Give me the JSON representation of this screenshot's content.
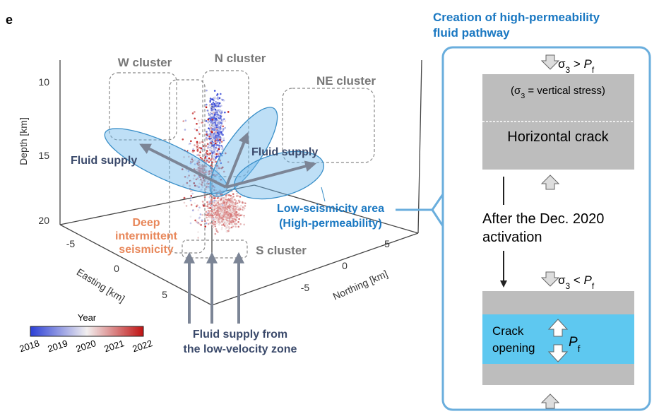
{
  "panel_label": "e",
  "plot": {
    "clusters": {
      "w": "W cluster",
      "n": "N cluster",
      "ne": "NE cluster",
      "s": "S cluster"
    },
    "depth_axis": {
      "label": "Depth [km]",
      "ticks": [
        "10",
        "15",
        "20"
      ]
    },
    "easting_axis": {
      "label": "Easting [km]",
      "ticks": [
        "-5",
        "0",
        "5"
      ]
    },
    "northing_axis": {
      "label": "Northing [km]",
      "ticks": [
        "5",
        "0",
        "-5"
      ]
    },
    "annotations": {
      "fluid_supply_left": "Fluid supply",
      "fluid_supply_right": "Fluid supply",
      "deep": [
        "Deep",
        "intermittent",
        "seismicity"
      ],
      "low_seismicity": [
        "Low-seismicity area",
        "(High-permeability)"
      ],
      "fluid_bottom": [
        "Fluid supply from",
        "the low-velocity zone"
      ]
    },
    "colorbar": {
      "title": "Year",
      "ticks": [
        "2018",
        "2019",
        "2020",
        "2021",
        "2022"
      ]
    }
  },
  "panel": {
    "title": [
      "Creation of high-permeability",
      "fluid pathway"
    ],
    "top_condition": [
      "σ",
      "3",
      " > ",
      "P",
      "f"
    ],
    "vertical_stress": [
      "(σ",
      "3",
      " = vertical stress)"
    ],
    "horizontal_crack": "Horizontal crack",
    "transition": [
      "After the Dec. 2020",
      "activation"
    ],
    "bottom_condition": [
      "σ",
      "3",
      " < ",
      "P",
      "f"
    ],
    "crack_opening": [
      "Crack",
      "opening"
    ],
    "pf": [
      "P",
      "f"
    ]
  }
}
